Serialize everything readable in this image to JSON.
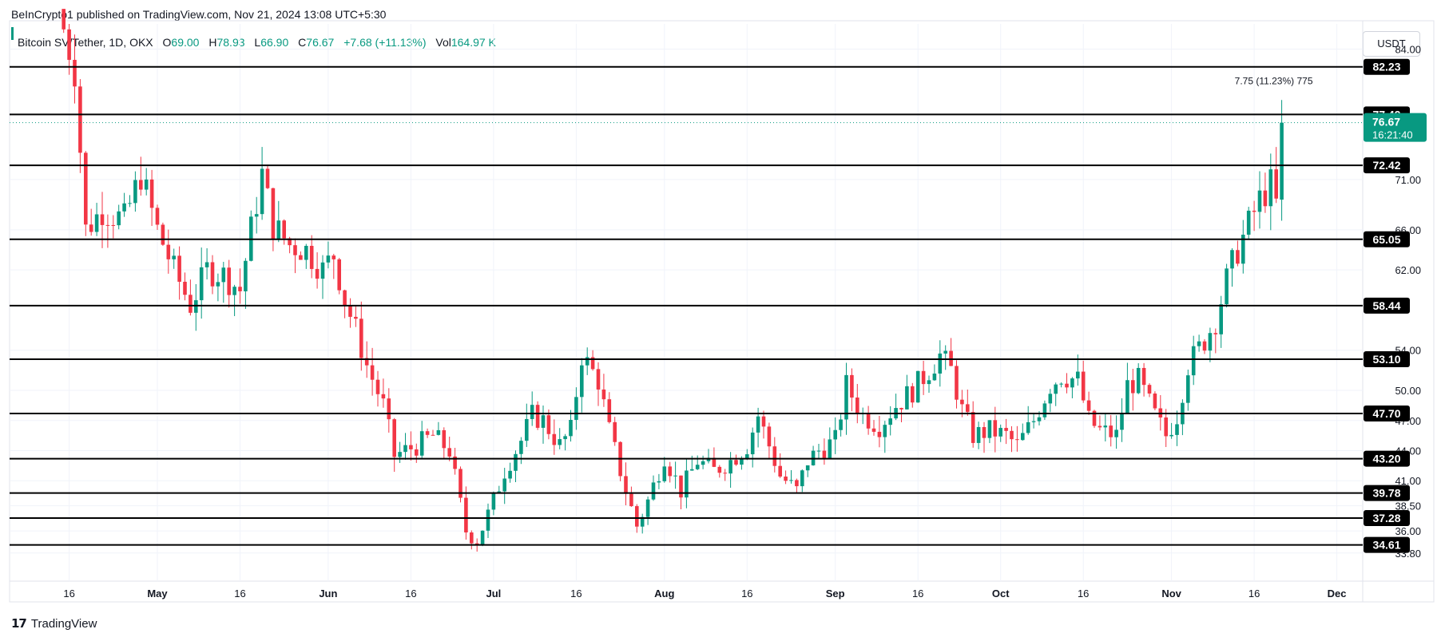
{
  "header": {
    "published": "BeInCrypto1 published on TradingView.com, Nov 21, 2024 13:08 UTC+5:30"
  },
  "legend": {
    "symbol": "Bitcoin SV/Tether, 1D, OKX",
    "open_label": "O",
    "open": "69.00",
    "high_label": "H",
    "high": "78.93",
    "low_label": "L",
    "low": "66.90",
    "close_label": "C",
    "close": "76.67",
    "change": "+7.68 (+11.13%)",
    "vol_label": "Vol",
    "vol": "164.97 K"
  },
  "currency": "USDT",
  "footer": {
    "brand": "TradingView",
    "logo_icon": "tradingview-logo-icon"
  },
  "colors": {
    "up": "#089981",
    "down": "#f23645",
    "level": "#000000",
    "grid": "#f0f3fa"
  },
  "chart_data": {
    "type": "candlestick",
    "price_range": [
      31.0,
      86.5
    ],
    "y_ticks": [
      84.0,
      71.0,
      66.0,
      62.0,
      54.0,
      50.0,
      47.0,
      44.0,
      41.0,
      38.5,
      36.0,
      33.8
    ],
    "x_labels": [
      {
        "label": "16",
        "day": -16
      },
      {
        "label": "May",
        "day": 0
      },
      {
        "label": "16",
        "day": 15
      },
      {
        "label": "Jun",
        "day": 31
      },
      {
        "label": "16",
        "day": 46
      },
      {
        "label": "Jul",
        "day": 61
      },
      {
        "label": "16",
        "day": 76
      },
      {
        "label": "Aug",
        "day": 92
      },
      {
        "label": "16",
        "day": 107
      },
      {
        "label": "Sep",
        "day": 123
      },
      {
        "label": "16",
        "day": 138
      },
      {
        "label": "Oct",
        "day": 153
      },
      {
        "label": "16",
        "day": 168
      },
      {
        "label": "Nov",
        "day": 184
      },
      {
        "label": "16",
        "day": 199
      },
      {
        "label": "Dec",
        "day": 214
      }
    ],
    "horizontal_levels": [
      82.23,
      77.49,
      72.42,
      65.05,
      58.44,
      53.1,
      47.7,
      43.2,
      39.78,
      37.28,
      34.61
    ],
    "last_price": "76.67",
    "countdown": "16:21:40",
    "measure_label": "7.75 (11.23%) 775",
    "series_keypoints": [
      [
        -18,
        88.0
      ],
      [
        -15,
        82.0
      ],
      [
        -13,
        66.0
      ],
      [
        -10,
        68.0
      ],
      [
        -6,
        67.0
      ],
      [
        -3,
        71.5
      ],
      [
        0,
        66.0
      ],
      [
        3,
        62.0
      ],
      [
        6,
        58.5
      ],
      [
        9,
        62.0
      ],
      [
        12,
        61.5
      ],
      [
        15,
        60.0
      ],
      [
        17,
        66.0
      ],
      [
        19,
        71.5
      ],
      [
        21,
        66.5
      ],
      [
        24,
        64.5
      ],
      [
        27,
        64.0
      ],
      [
        30,
        62.0
      ],
      [
        32,
        63.5
      ],
      [
        34,
        59.0
      ],
      [
        36,
        56.0
      ],
      [
        38,
        52.5
      ],
      [
        41,
        48.5
      ],
      [
        43,
        43.5
      ],
      [
        47,
        44.5
      ],
      [
        50,
        45.5
      ],
      [
        53,
        44.0
      ],
      [
        56,
        36.0
      ],
      [
        58,
        35.0
      ],
      [
        61,
        39.0
      ],
      [
        63,
        42.0
      ],
      [
        66,
        45.0
      ],
      [
        68,
        47.5
      ],
      [
        70,
        47.0
      ],
      [
        73,
        44.5
      ],
      [
        75,
        46.0
      ],
      [
        77,
        53.5
      ],
      [
        80,
        51.0
      ],
      [
        82,
        46.0
      ],
      [
        85,
        40.0
      ],
      [
        87,
        36.5
      ],
      [
        89,
        39.0
      ],
      [
        92,
        43.5
      ],
      [
        95,
        40.0
      ],
      [
        98,
        43.0
      ],
      [
        101,
        42.0
      ],
      [
        104,
        43.0
      ],
      [
        107,
        44.5
      ],
      [
        109,
        47.5
      ],
      [
        111,
        44.5
      ],
      [
        113,
        41.5
      ],
      [
        116,
        40.0
      ],
      [
        118,
        43.0
      ],
      [
        120,
        44.0
      ],
      [
        123,
        45.0
      ],
      [
        125,
        50.5
      ],
      [
        128,
        47.5
      ],
      [
        131,
        46.5
      ],
      [
        134,
        48.5
      ],
      [
        137,
        50.0
      ],
      [
        140,
        52.0
      ],
      [
        142,
        53.5
      ],
      [
        144,
        52.0
      ],
      [
        146,
        48.0
      ],
      [
        148,
        45.5
      ],
      [
        151,
        46.0
      ],
      [
        154,
        45.5
      ],
      [
        156,
        44.5
      ],
      [
        159,
        47.0
      ],
      [
        162,
        50.5
      ],
      [
        164,
        51.5
      ],
      [
        167,
        51.0
      ],
      [
        169,
        47.0
      ],
      [
        171,
        46.0
      ],
      [
        174,
        45.5
      ],
      [
        176,
        50.5
      ],
      [
        178,
        51.0
      ],
      [
        181,
        47.5
      ],
      [
        183,
        45.5
      ],
      [
        185,
        47.5
      ],
      [
        187,
        52.5
      ],
      [
        190,
        55.0
      ],
      [
        192,
        57.0
      ],
      [
        194,
        61.0
      ],
      [
        196,
        64.0
      ],
      [
        198,
        66.5
      ],
      [
        200,
        69.0
      ],
      [
        202,
        70.5
      ],
      [
        203,
        68.5
      ],
      [
        204,
        76.67
      ]
    ]
  }
}
